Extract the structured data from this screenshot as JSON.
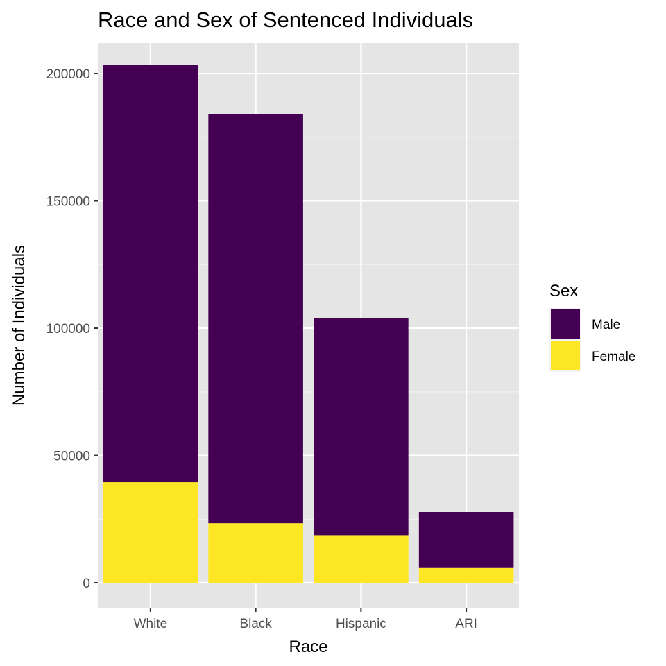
{
  "chart_data": {
    "type": "bar",
    "stacked": true,
    "title": "Race and Sex of Sentenced Individuals",
    "xlabel": "Race",
    "ylabel": "Number of Individuals",
    "categories": [
      "White",
      "Black",
      "Hispanic",
      "ARI"
    ],
    "series": [
      {
        "name": "Male",
        "color": "#440154",
        "values": [
          163800,
          160600,
          85300,
          22000
        ]
      },
      {
        "name": "Female",
        "color": "#FDE725",
        "values": [
          39500,
          23400,
          18700,
          5800
        ]
      }
    ],
    "stack_order_bottom_to_top": [
      "Female",
      "Male"
    ],
    "ylim": [
      -9800,
      212000
    ],
    "yticks": [
      0,
      50000,
      100000,
      150000,
      200000
    ],
    "ytick_labels": [
      "0",
      "50000",
      "100000",
      "150000",
      "200000"
    ],
    "grid": true,
    "panel_background": "#E5E5E5",
    "legend": {
      "title": "Sex",
      "position": "right",
      "entries": [
        "Male",
        "Female"
      ]
    }
  }
}
